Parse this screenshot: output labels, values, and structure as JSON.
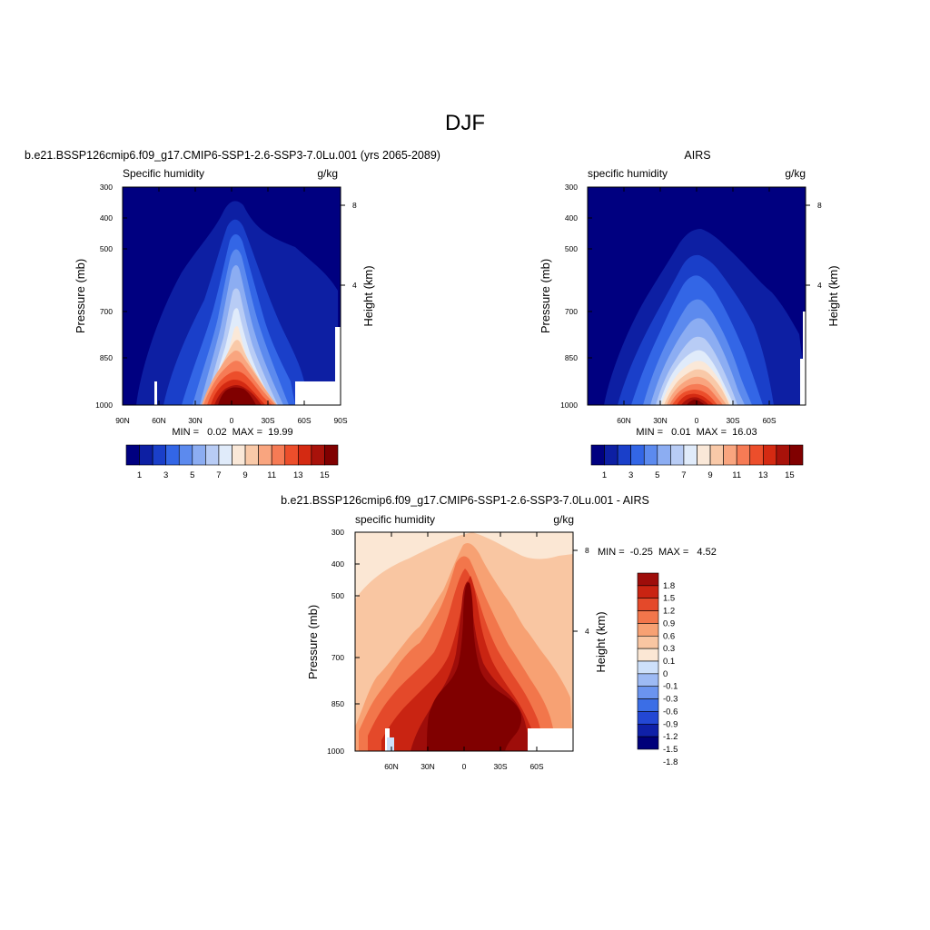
{
  "figure": {
    "title": "DJF"
  },
  "colors": {
    "sequential": [
      "#000080",
      "#0d1fa3",
      "#1a3fc9",
      "#3366e6",
      "#5c8aee",
      "#8cadf2",
      "#b8ccf5",
      "#e0ebfa",
      "#fae8d8",
      "#f9c9a8",
      "#f9a57f",
      "#f67b55",
      "#ec4e2b",
      "#d42a12",
      "#a8120a",
      "#800000"
    ],
    "diverging": [
      "#00007a",
      "#0f20a8",
      "#2347d4",
      "#3b6ee6",
      "#6b94ef",
      "#9dbaf4",
      "#cde0fa",
      "#fbe7d4",
      "#f9c6a2",
      "#f7a173",
      "#f2764b",
      "#e4492a",
      "#c92412",
      "#9e0d0a"
    ]
  },
  "chart_data": [
    {
      "type": "heatmap",
      "title": "b.e21.BSSP126cmip6.f09_g17.CMIP6-SSP1-2.6-SSP3-7.0Lu.001 (yrs 2065-2089)",
      "left_label": "Specific humidity",
      "right_label": "g/kg",
      "ylabel": "Pressure (mb)",
      "ylabel_right": "Height (km)",
      "x_ticks": [
        "90N",
        "60N",
        "30N",
        "0",
        "30S",
        "60S",
        "90S"
      ],
      "y_ticks": [
        "300",
        "400",
        "500",
        "700",
        "850",
        "1000"
      ],
      "y_right_ticks": [
        "8",
        "4"
      ],
      "stats": "MIN =   0.02  MAX =  19.99",
      "colorbar": {
        "orientation": "horizontal",
        "labels": [
          "1",
          "3",
          "5",
          "7",
          "9",
          "11",
          "13",
          "15"
        ]
      },
      "xlim": [
        90,
        -90
      ],
      "ylim": [
        1000,
        300
      ],
      "contour_levels": [
        0.5,
        1,
        2,
        3,
        4,
        5,
        6,
        7,
        8,
        9,
        10,
        11,
        12,
        13,
        14,
        15
      ],
      "peaks": [
        {
          "lat": 3,
          "pressure": 300,
          "value": 0.3
        },
        {
          "lat": 3,
          "pressure": 1000,
          "value": 19.99
        }
      ]
    },
    {
      "type": "heatmap",
      "title": "AIRS",
      "left_label": "specific humidity",
      "right_label": "g/kg",
      "x_ticks": [
        "60N",
        "30N",
        "0",
        "30S",
        "60S"
      ],
      "y_ticks": [
        "300",
        "400",
        "500",
        "700",
        "850",
        "1000"
      ],
      "y_right_ticks": [
        "8",
        "4"
      ],
      "ylabel": "Pressure (mb)",
      "ylabel_right": "Height (km)",
      "stats": "MIN =   0.01  MAX =  16.03",
      "colorbar": {
        "orientation": "horizontal",
        "labels": [
          "1",
          "3",
          "5",
          "7",
          "9",
          "11",
          "13",
          "15"
        ]
      },
      "xlim": [
        90,
        -90
      ],
      "ylim": [
        1000,
        300
      ],
      "contour_levels": [
        0.5,
        1,
        2,
        3,
        4,
        5,
        6,
        7,
        8,
        9,
        10,
        11,
        12,
        13,
        14,
        15
      ],
      "peaks": [
        {
          "lat": 0,
          "pressure": 1000,
          "value": 16.03
        }
      ]
    },
    {
      "type": "heatmap",
      "title": "b.e21.BSSP126cmip6.f09_g17.CMIP6-SSP1-2.6-SSP3-7.0Lu.001 - AIRS",
      "left_label": "specific humidity",
      "right_label": "g/kg",
      "ylabel": "Pressure (mb)",
      "ylabel_right": "Height (km)",
      "x_ticks": [
        "60N",
        "30N",
        "0",
        "30S",
        "60S"
      ],
      "y_ticks": [
        "300",
        "400",
        "500",
        "700",
        "850",
        "1000"
      ],
      "y_right_ticks": [
        "8",
        "4"
      ],
      "stats": "MIN =  -0.25  MAX =   4.52",
      "colorbar": {
        "orientation": "vertical",
        "labels": [
          "1.8",
          "1.5",
          "1.2",
          "0.9",
          "0.6",
          "0.3",
          "0.1",
          "0",
          "-0.1",
          "-0.3",
          "-0.6",
          "-0.9",
          "-1.2",
          "-1.5",
          "-1.8"
        ]
      },
      "xlim": [
        90,
        -90
      ],
      "ylim": [
        1000,
        300
      ],
      "contour_levels": [
        -1.8,
        -1.5,
        -1.2,
        -0.9,
        -0.6,
        -0.3,
        -0.1,
        0,
        0.1,
        0.3,
        0.6,
        0.9,
        1.2,
        1.5,
        1.8
      ],
      "peaks": [
        {
          "lat": 0,
          "pressure": 850,
          "value": 4.52
        }
      ]
    }
  ]
}
